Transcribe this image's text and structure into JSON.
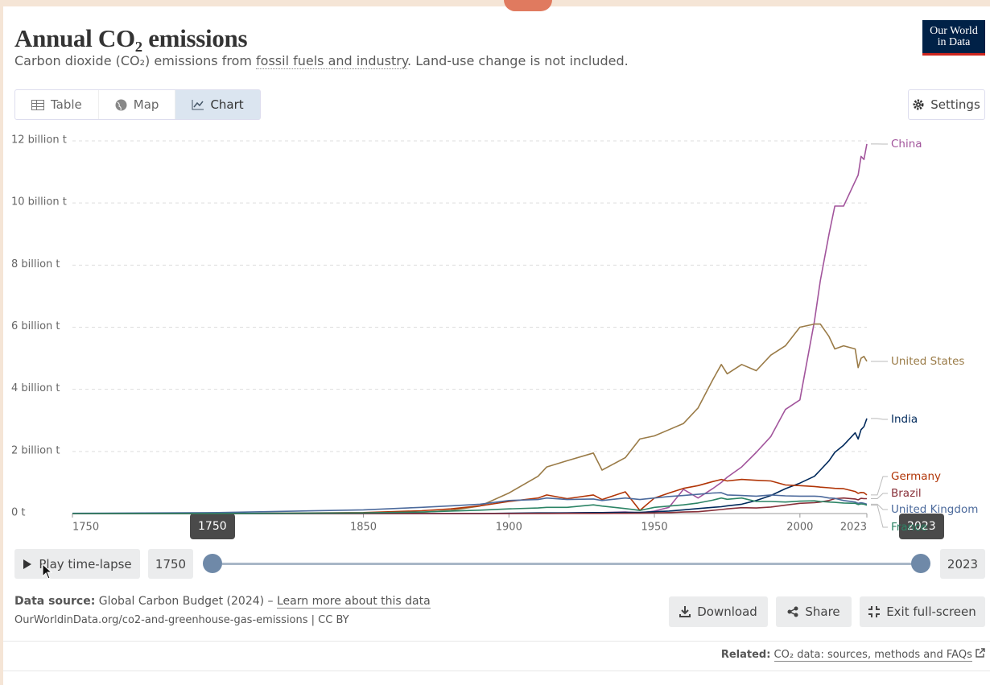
{
  "header": {
    "title": "Annual CO₂ emissions",
    "subtitle_pre": "Carbon dioxide (CO₂) emissions from ",
    "subtitle_link": "fossil fuels and industry",
    "subtitle_post": ". Land-use change is not included.",
    "logo_line1": "Our World",
    "logo_line2": "in Data"
  },
  "tabs": [
    "Table",
    "Map",
    "Chart"
  ],
  "settings": "Settings",
  "chart_data": {
    "type": "line",
    "x": [
      1750,
      1800,
      1850,
      1870,
      1880,
      1890,
      1900,
      1910,
      1913,
      1920,
      1929,
      1932,
      1940,
      1945,
      1950,
      1955,
      1960,
      1965,
      1970,
      1973,
      1975,
      1980,
      1985,
      1990,
      1995,
      2000,
      2005,
      2007,
      2010,
      2012,
      2015,
      2019,
      2020,
      2021,
      2022,
      2023
    ],
    "xlim": [
      1750,
      2023
    ],
    "xticks": [
      1750,
      1850,
      1900,
      1950,
      2000,
      2023
    ],
    "ylim": [
      0,
      12
    ],
    "yticks": [
      {
        "value": 0,
        "label": "0 t"
      },
      {
        "value": 2,
        "label": "2 billion t"
      },
      {
        "value": 4,
        "label": "4 billion t"
      },
      {
        "value": 6,
        "label": "6 billion t"
      },
      {
        "value": 8,
        "label": "8 billion t"
      },
      {
        "value": 10,
        "label": "10 billion t"
      },
      {
        "value": 12,
        "label": "12 billion t"
      }
    ],
    "grid": true,
    "series": [
      {
        "name": "China",
        "color": "#a2559c",
        "values": [
          0,
          0,
          0,
          0,
          0,
          0,
          0.001,
          0.01,
          0.01,
          0.02,
          0.03,
          0.03,
          0.05,
          0.02,
          0.08,
          0.2,
          0.78,
          0.5,
          0.8,
          1.0,
          1.17,
          1.5,
          1.97,
          2.48,
          3.35,
          3.66,
          6.2,
          7.5,
          9.0,
          9.9,
          9.9,
          10.7,
          10.9,
          11.5,
          11.4,
          11.9
        ]
      },
      {
        "name": "United States",
        "color": "#9a7b47",
        "values": [
          0,
          0.0003,
          0.005,
          0.04,
          0.1,
          0.24,
          0.66,
          1.2,
          1.5,
          1.7,
          1.95,
          1.4,
          1.8,
          2.4,
          2.5,
          2.7,
          2.9,
          3.4,
          4.3,
          4.8,
          4.5,
          4.8,
          4.6,
          5.1,
          5.4,
          6.0,
          6.1,
          6.1,
          5.7,
          5.3,
          5.4,
          5.3,
          4.7,
          5.0,
          5.06,
          4.9
        ]
      },
      {
        "name": "India",
        "color": "#00295b",
        "values": [
          0,
          0,
          0,
          0,
          0,
          0,
          0.01,
          0.02,
          0.02,
          0.02,
          0.03,
          0.03,
          0.04,
          0.04,
          0.06,
          0.08,
          0.12,
          0.16,
          0.2,
          0.22,
          0.25,
          0.3,
          0.42,
          0.58,
          0.8,
          0.98,
          1.2,
          1.4,
          1.7,
          1.97,
          2.2,
          2.6,
          2.4,
          2.7,
          2.8,
          3.06
        ]
      },
      {
        "name": "Germany",
        "color": "#b13507",
        "values": [
          0,
          0.001,
          0.03,
          0.09,
          0.15,
          0.25,
          0.39,
          0.5,
          0.6,
          0.48,
          0.6,
          0.45,
          0.7,
          0.1,
          0.5,
          0.66,
          0.81,
          0.9,
          1.03,
          1.1,
          1.05,
          1.1,
          1.07,
          1.05,
          0.92,
          0.9,
          0.87,
          0.85,
          0.83,
          0.81,
          0.8,
          0.71,
          0.65,
          0.68,
          0.67,
          0.6
        ]
      },
      {
        "name": "Brazil",
        "color": "#883039",
        "values": [
          0,
          0,
          0,
          0,
          0,
          0,
          0.001,
          0.002,
          0.003,
          0.004,
          0.006,
          0.005,
          0.008,
          0.01,
          0.02,
          0.03,
          0.05,
          0.06,
          0.1,
          0.13,
          0.15,
          0.19,
          0.18,
          0.21,
          0.27,
          0.33,
          0.35,
          0.37,
          0.42,
          0.48,
          0.5,
          0.47,
          0.44,
          0.49,
          0.48,
          0.48
        ]
      },
      {
        "name": "United Kingdom",
        "color": "#4c6a9c",
        "values": [
          0.009,
          0.03,
          0.12,
          0.2,
          0.25,
          0.3,
          0.42,
          0.45,
          0.5,
          0.45,
          0.47,
          0.42,
          0.5,
          0.45,
          0.5,
          0.55,
          0.58,
          0.62,
          0.66,
          0.67,
          0.6,
          0.58,
          0.56,
          0.6,
          0.57,
          0.56,
          0.56,
          0.55,
          0.5,
          0.49,
          0.42,
          0.37,
          0.33,
          0.35,
          0.33,
          0.3
        ]
      },
      {
        "name": "France",
        "color": "#2c8465",
        "values": [
          0.001,
          0.003,
          0.02,
          0.05,
          0.08,
          0.11,
          0.15,
          0.18,
          0.2,
          0.2,
          0.28,
          0.24,
          0.16,
          0.1,
          0.2,
          0.24,
          0.28,
          0.34,
          0.43,
          0.5,
          0.46,
          0.5,
          0.39,
          0.39,
          0.37,
          0.4,
          0.41,
          0.39,
          0.37,
          0.36,
          0.34,
          0.33,
          0.29,
          0.31,
          0.3,
          0.27
        ]
      }
    ]
  },
  "timeline": {
    "play": "Play time-lapse",
    "start": "1750",
    "end": "2023"
  },
  "footer": {
    "source_label": "Data source:",
    "source_text": " Global Carbon Budget (2024) – ",
    "learn_more": "Learn more about this data",
    "url": "OurWorldinData.org/co2-and-greenhouse-gas-emissions | CC BY",
    "buttons": [
      "Download",
      "Share",
      "Exit full-screen"
    ],
    "related_label": "Related:",
    "related_link": "CO₂ data: sources, methods and FAQs"
  }
}
